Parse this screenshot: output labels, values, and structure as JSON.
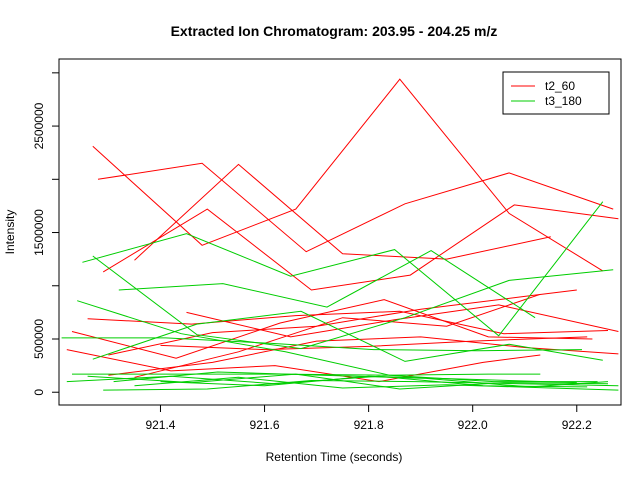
{
  "chart_data": {
    "type": "line",
    "title": "Extracted Ion Chromatogram: 203.95 - 204.25 m/z",
    "xlabel": "Retention Time (seconds)",
    "ylabel": "Intensity",
    "xlim": [
      921.205,
      922.285
    ],
    "ylim": [
      -120000,
      3130000
    ],
    "x_ticks": [
      921.4,
      921.6,
      921.8,
      922.0,
      922.2
    ],
    "x_tick_labels": [
      "921.4",
      "921.6",
      "921.8",
      "922.0",
      "922.2"
    ],
    "y_ticks": [
      0,
      500000,
      1500000,
      2500000
    ],
    "y_tick_labels": [
      "0",
      "500000",
      "1500000",
      "2500000"
    ],
    "grid": false,
    "legend": {
      "position": "top-right",
      "entries": [
        {
          "name": "t2_60",
          "color": "#ff0000"
        },
        {
          "name": "t3_180",
          "color": "#00cd00"
        }
      ]
    },
    "series": [
      {
        "name": "t2_60",
        "color": "#ff0000",
        "traces": [
          [
            [
              921.27,
              2310000
            ],
            [
              921.48,
              1380000
            ],
            [
              921.66,
              1720000
            ],
            [
              921.86,
              2940000
            ],
            [
              922.07,
              1680000
            ],
            [
              922.25,
              1140000
            ]
          ],
          [
            [
              921.28,
              2000000
            ],
            [
              921.48,
              2150000
            ],
            [
              921.68,
              1320000
            ],
            [
              921.87,
              1770000
            ],
            [
              922.07,
              2060000
            ],
            [
              922.27,
              1720000
            ]
          ],
          [
            [
              921.29,
              1130000
            ],
            [
              921.49,
              1720000
            ],
            [
              921.69,
              960000
            ],
            [
              921.88,
              1100000
            ],
            [
              922.08,
              1760000
            ],
            [
              922.28,
              1630000
            ]
          ],
          [
            [
              921.35,
              1240000
            ],
            [
              921.55,
              2140000
            ],
            [
              921.75,
              1300000
            ],
            [
              921.95,
              1250000
            ],
            [
              922.15,
              1460000
            ]
          ],
          [
            [
              921.23,
              570000
            ],
            [
              921.43,
              320000
            ],
            [
              921.63,
              650000
            ],
            [
              921.83,
              870000
            ],
            [
              922.03,
              520000
            ],
            [
              922.23,
              500000
            ]
          ],
          [
            [
              921.26,
              690000
            ],
            [
              921.46,
              640000
            ],
            [
              921.66,
              720000
            ],
            [
              921.86,
              760000
            ],
            [
              922.06,
              550000
            ],
            [
              922.26,
              580000
            ]
          ],
          [
            [
              921.3,
              350000
            ],
            [
              921.5,
              560000
            ],
            [
              921.7,
              620000
            ],
            [
              921.9,
              780000
            ],
            [
              922.1,
              900000
            ],
            [
              922.2,
              960000
            ]
          ],
          [
            [
              921.35,
              140000
            ],
            [
              921.55,
              380000
            ],
            [
              921.75,
              700000
            ],
            [
              921.95,
              620000
            ],
            [
              922.13,
              920000
            ]
          ],
          [
            [
              921.45,
              750000
            ],
            [
              921.65,
              520000
            ],
            [
              921.85,
              680000
            ],
            [
              922.05,
              820000
            ],
            [
              922.28,
              570000
            ]
          ],
          [
            [
              921.3,
              160000
            ],
            [
              921.5,
              280000
            ],
            [
              921.7,
              480000
            ],
            [
              921.9,
              520000
            ],
            [
              922.1,
              420000
            ],
            [
              922.28,
              360000
            ]
          ],
          [
            [
              921.22,
              400000
            ],
            [
              921.42,
              200000
            ],
            [
              921.62,
              250000
            ],
            [
              921.82,
              100000
            ],
            [
              922.02,
              280000
            ],
            [
              922.13,
              350000
            ]
          ],
          [
            [
              921.4,
              440000
            ],
            [
              921.6,
              400000
            ],
            [
              921.8,
              430000
            ],
            [
              922.0,
              480000
            ],
            [
              922.22,
              520000
            ]
          ]
        ]
      },
      {
        "name": "t3_180",
        "color": "#00cd00",
        "traces": [
          [
            [
              921.25,
              1220000
            ],
            [
              921.45,
              1490000
            ],
            [
              921.65,
              1090000
            ],
            [
              921.85,
              1340000
            ],
            [
              922.05,
              530000
            ],
            [
              922.25,
              1790000
            ]
          ],
          [
            [
              921.27,
              1280000
            ],
            [
              921.47,
              540000
            ],
            [
              921.67,
              410000
            ],
            [
              921.87,
              700000
            ],
            [
              922.07,
              1050000
            ],
            [
              922.27,
              1150000
            ]
          ],
          [
            [
              921.32,
              960000
            ],
            [
              921.52,
              1020000
            ],
            [
              921.72,
              800000
            ],
            [
              921.92,
              1330000
            ],
            [
              922.12,
              700000
            ]
          ],
          [
            [
              921.24,
              860000
            ],
            [
              921.44,
              550000
            ],
            [
              921.64,
              380000
            ],
            [
              921.84,
              160000
            ],
            [
              922.04,
              100000
            ],
            [
              922.24,
              100000
            ]
          ],
          [
            [
              921.21,
              510000
            ],
            [
              921.41,
              510000
            ],
            [
              921.61,
              460000
            ],
            [
              921.81,
              400000
            ],
            [
              922.01,
              390000
            ],
            [
              922.21,
              400000
            ]
          ],
          [
            [
              921.27,
              310000
            ],
            [
              921.47,
              640000
            ],
            [
              921.67,
              760000
            ],
            [
              921.87,
              290000
            ],
            [
              922.07,
              450000
            ],
            [
              922.25,
              300000
            ]
          ],
          [
            [
              921.22,
              100000
            ],
            [
              921.42,
              150000
            ],
            [
              921.62,
              80000
            ],
            [
              921.82,
              150000
            ],
            [
              922.02,
              60000
            ],
            [
              922.22,
              50000
            ]
          ],
          [
            [
              921.26,
              150000
            ],
            [
              921.46,
              90000
            ],
            [
              921.66,
              170000
            ],
            [
              921.86,
              30000
            ],
            [
              922.06,
              90000
            ],
            [
              922.26,
              80000
            ]
          ],
          [
            [
              921.29,
              20000
            ],
            [
              921.49,
              30000
            ],
            [
              921.69,
              110000
            ],
            [
              921.89,
              100000
            ],
            [
              922.09,
              80000
            ],
            [
              922.28,
              60000
            ]
          ],
          [
            [
              921.31,
              100000
            ],
            [
              921.51,
              190000
            ],
            [
              921.71,
              160000
            ],
            [
              921.91,
              130000
            ],
            [
              922.11,
              50000
            ],
            [
              922.26,
              100000
            ]
          ],
          [
            [
              921.35,
              60000
            ],
            [
              921.55,
              140000
            ],
            [
              921.75,
              40000
            ],
            [
              921.95,
              70000
            ],
            [
              922.15,
              40000
            ],
            [
              922.28,
              20000
            ]
          ],
          [
            [
              921.23,
              170000
            ],
            [
              921.43,
              170000
            ],
            [
              921.63,
              170000
            ],
            [
              921.83,
              160000
            ],
            [
              922.03,
              170000
            ],
            [
              922.13,
              170000
            ]
          ],
          [
            [
              921.4,
              100000
            ],
            [
              921.6,
              60000
            ],
            [
              921.8,
              150000
            ],
            [
              922.0,
              120000
            ],
            [
              922.2,
              90000
            ]
          ]
        ]
      }
    ]
  }
}
